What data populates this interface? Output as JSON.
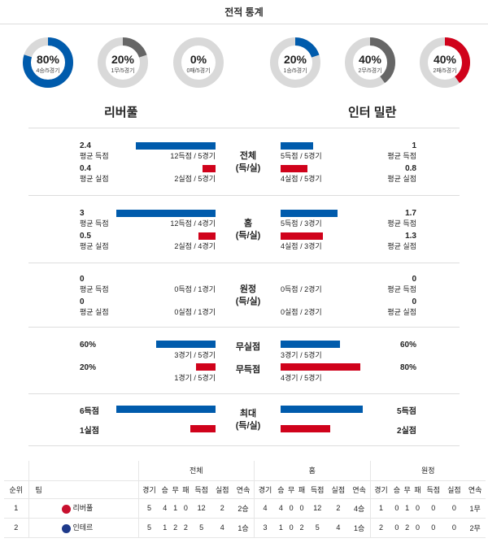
{
  "header": {
    "title": "전적 통계"
  },
  "colors": {
    "blue": "#005bac",
    "red": "#d0021b",
    "gray": "#666666",
    "track": "#d9d9d9"
  },
  "left_team": {
    "name": "리버풀",
    "donuts": [
      {
        "pct": "80%",
        "sub": "4승/5경기",
        "fraction": 0.8,
        "color": "#005bac"
      },
      {
        "pct": "20%",
        "sub": "1무/5경기",
        "fraction": 0.2,
        "color": "#666666"
      },
      {
        "pct": "0%",
        "sub": "0패/5경기",
        "fraction": 0.0,
        "color": "#d0021b"
      }
    ]
  },
  "right_team": {
    "name": "인터 밀란",
    "donuts": [
      {
        "pct": "20%",
        "sub": "1승/5경기",
        "fraction": 0.2,
        "color": "#005bac"
      },
      {
        "pct": "40%",
        "sub": "2무/5경기",
        "fraction": 0.4,
        "color": "#666666"
      },
      {
        "pct": "40%",
        "sub": "2패/5경기",
        "fraction": 0.4,
        "color": "#d0021b"
      }
    ]
  },
  "sections": [
    {
      "label1": "전체",
      "label2": "(득/실)",
      "rows": [
        {
          "left_val": "2.4",
          "left_label": "평균 득점",
          "left_detail": "12득점 / 5경기",
          "left_fraction": 0.8,
          "right_val": "1",
          "right_label": "평균 득점",
          "right_detail": "5득점 / 5경기",
          "right_fraction": 0.33,
          "color": "blue"
        },
        {
          "left_val": "0.4",
          "left_label": "평균 실점",
          "left_detail": "2실점 / 5경기",
          "left_fraction": 0.13,
          "right_val": "0.8",
          "right_label": "평균 실점",
          "right_detail": "4실점 / 5경기",
          "right_fraction": 0.27,
          "color": "red"
        }
      ]
    },
    {
      "label1": "홈",
      "label2": "(득/실)",
      "rows": [
        {
          "left_val": "3",
          "left_label": "평균 득점",
          "left_detail": "12득점 / 4경기",
          "left_fraction": 1.0,
          "right_val": "1.7",
          "right_label": "평균 득점",
          "right_detail": "5득점 / 3경기",
          "right_fraction": 0.57,
          "color": "blue"
        },
        {
          "left_val": "0.5",
          "left_label": "평균 실점",
          "left_detail": "2실점 / 4경기",
          "left_fraction": 0.17,
          "right_val": "1.3",
          "right_label": "평균 실점",
          "right_detail": "4실점 / 3경기",
          "right_fraction": 0.43,
          "color": "red"
        }
      ]
    },
    {
      "label1": "원정",
      "label2": "(득/실)",
      "rows": [
        {
          "left_val": "0",
          "left_label": "평균 득점",
          "left_detail": "0득점 / 1경기",
          "left_fraction": 0,
          "right_val": "0",
          "right_label": "평균 득점",
          "right_detail": "0득점 / 2경기",
          "right_fraction": 0,
          "color": "blue"
        },
        {
          "left_val": "0",
          "left_label": "평균 실점",
          "left_detail": "0실점 / 1경기",
          "left_fraction": 0,
          "right_val": "0",
          "right_label": "평균 실점",
          "right_detail": "0실점 / 2경기",
          "right_fraction": 0,
          "color": "red"
        }
      ]
    }
  ],
  "cleansheet": {
    "rows": [
      {
        "center": "무실점",
        "left_val": "60%",
        "left_detail": "3경기 / 5경기",
        "left_fraction": 0.6,
        "right_val": "60%",
        "right_detail": "3경기 / 5경기",
        "right_fraction": 0.6,
        "color": "blue"
      },
      {
        "center": "무득점",
        "left_val": "20%",
        "left_detail": "1경기 / 5경기",
        "left_fraction": 0.2,
        "right_val": "80%",
        "right_detail": "4경기 / 5경기",
        "right_fraction": 0.8,
        "color": "red"
      }
    ]
  },
  "max": {
    "label1": "최대",
    "label2": "(득/실)",
    "rows": [
      {
        "left_val": "6득점",
        "left_fraction": 1.0,
        "right_val": "5득점",
        "right_fraction": 0.83,
        "color": "blue"
      },
      {
        "left_val": "1실점",
        "left_fraction": 0.25,
        "right_val": "2실점",
        "right_fraction": 0.5,
        "color": "red"
      }
    ]
  },
  "standings": {
    "group_headers": [
      "전체",
      "홈",
      "원정"
    ],
    "col_rank": "순위",
    "col_team": "팀",
    "sub_headers": [
      "경기",
      "승",
      "무",
      "패",
      "득점",
      "실점",
      "연속"
    ],
    "rows": [
      {
        "rank": "1",
        "team": "리버풀",
        "crest_color": "#c8102e",
        "total": [
          "5",
          "4",
          "1",
          "0",
          "12",
          "2",
          "2승"
        ],
        "home": [
          "4",
          "4",
          "0",
          "0",
          "12",
          "2",
          "4승"
        ],
        "away": [
          "1",
          "0",
          "1",
          "0",
          "0",
          "0",
          "1무"
        ]
      },
      {
        "rank": "2",
        "team": "인테르",
        "crest_color": "#1e3a8a",
        "total": [
          "5",
          "1",
          "2",
          "2",
          "5",
          "4",
          "1승"
        ],
        "home": [
          "3",
          "1",
          "0",
          "2",
          "5",
          "4",
          "1승"
        ],
        "away": [
          "2",
          "0",
          "2",
          "0",
          "0",
          "0",
          "2무"
        ]
      }
    ]
  }
}
